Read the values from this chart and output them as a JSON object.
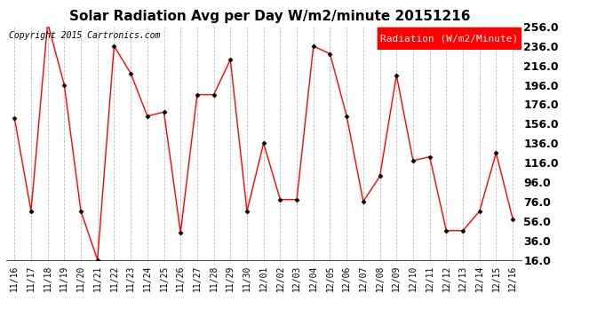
{
  "title": "Solar Radiation Avg per Day W/m2/minute 20151216",
  "copyright": "Copyright 2015 Cartronics.com",
  "legend_label": "Radiation (W/m2/Minute)",
  "x_labels": [
    "11/16",
    "11/17",
    "11/18",
    "11/19",
    "11/20",
    "11/21",
    "11/22",
    "11/23",
    "11/24",
    "11/25",
    "11/26",
    "11/27",
    "11/28",
    "11/29",
    "11/30",
    "12/01",
    "12/02",
    "12/03",
    "12/04",
    "12/05",
    "12/06",
    "12/07",
    "12/08",
    "12/09",
    "12/10",
    "12/11",
    "12/12",
    "12/13",
    "12/14",
    "12/15",
    "12/16"
  ],
  "y_values": [
    162,
    66,
    260,
    196,
    66,
    16,
    236,
    208,
    164,
    168,
    44,
    186,
    186,
    222,
    66,
    136,
    78,
    78,
    236,
    228,
    164,
    76,
    102,
    206,
    118,
    122,
    46,
    46,
    66,
    126,
    58
  ],
  "ylim_min": 16.0,
  "ylim_max": 256.0,
  "y_ticks": [
    16.0,
    36.0,
    56.0,
    76.0,
    96.0,
    116.0,
    136.0,
    156.0,
    176.0,
    196.0,
    216.0,
    236.0,
    256.0
  ],
  "line_color": "red",
  "marker_color": "black",
  "background_color": "#ffffff",
  "grid_color": "#bbbbbb",
  "title_fontsize": 11,
  "copyright_fontsize": 7,
  "tick_fontsize": 7,
  "ytick_fontsize": 9,
  "legend_fontsize": 8
}
